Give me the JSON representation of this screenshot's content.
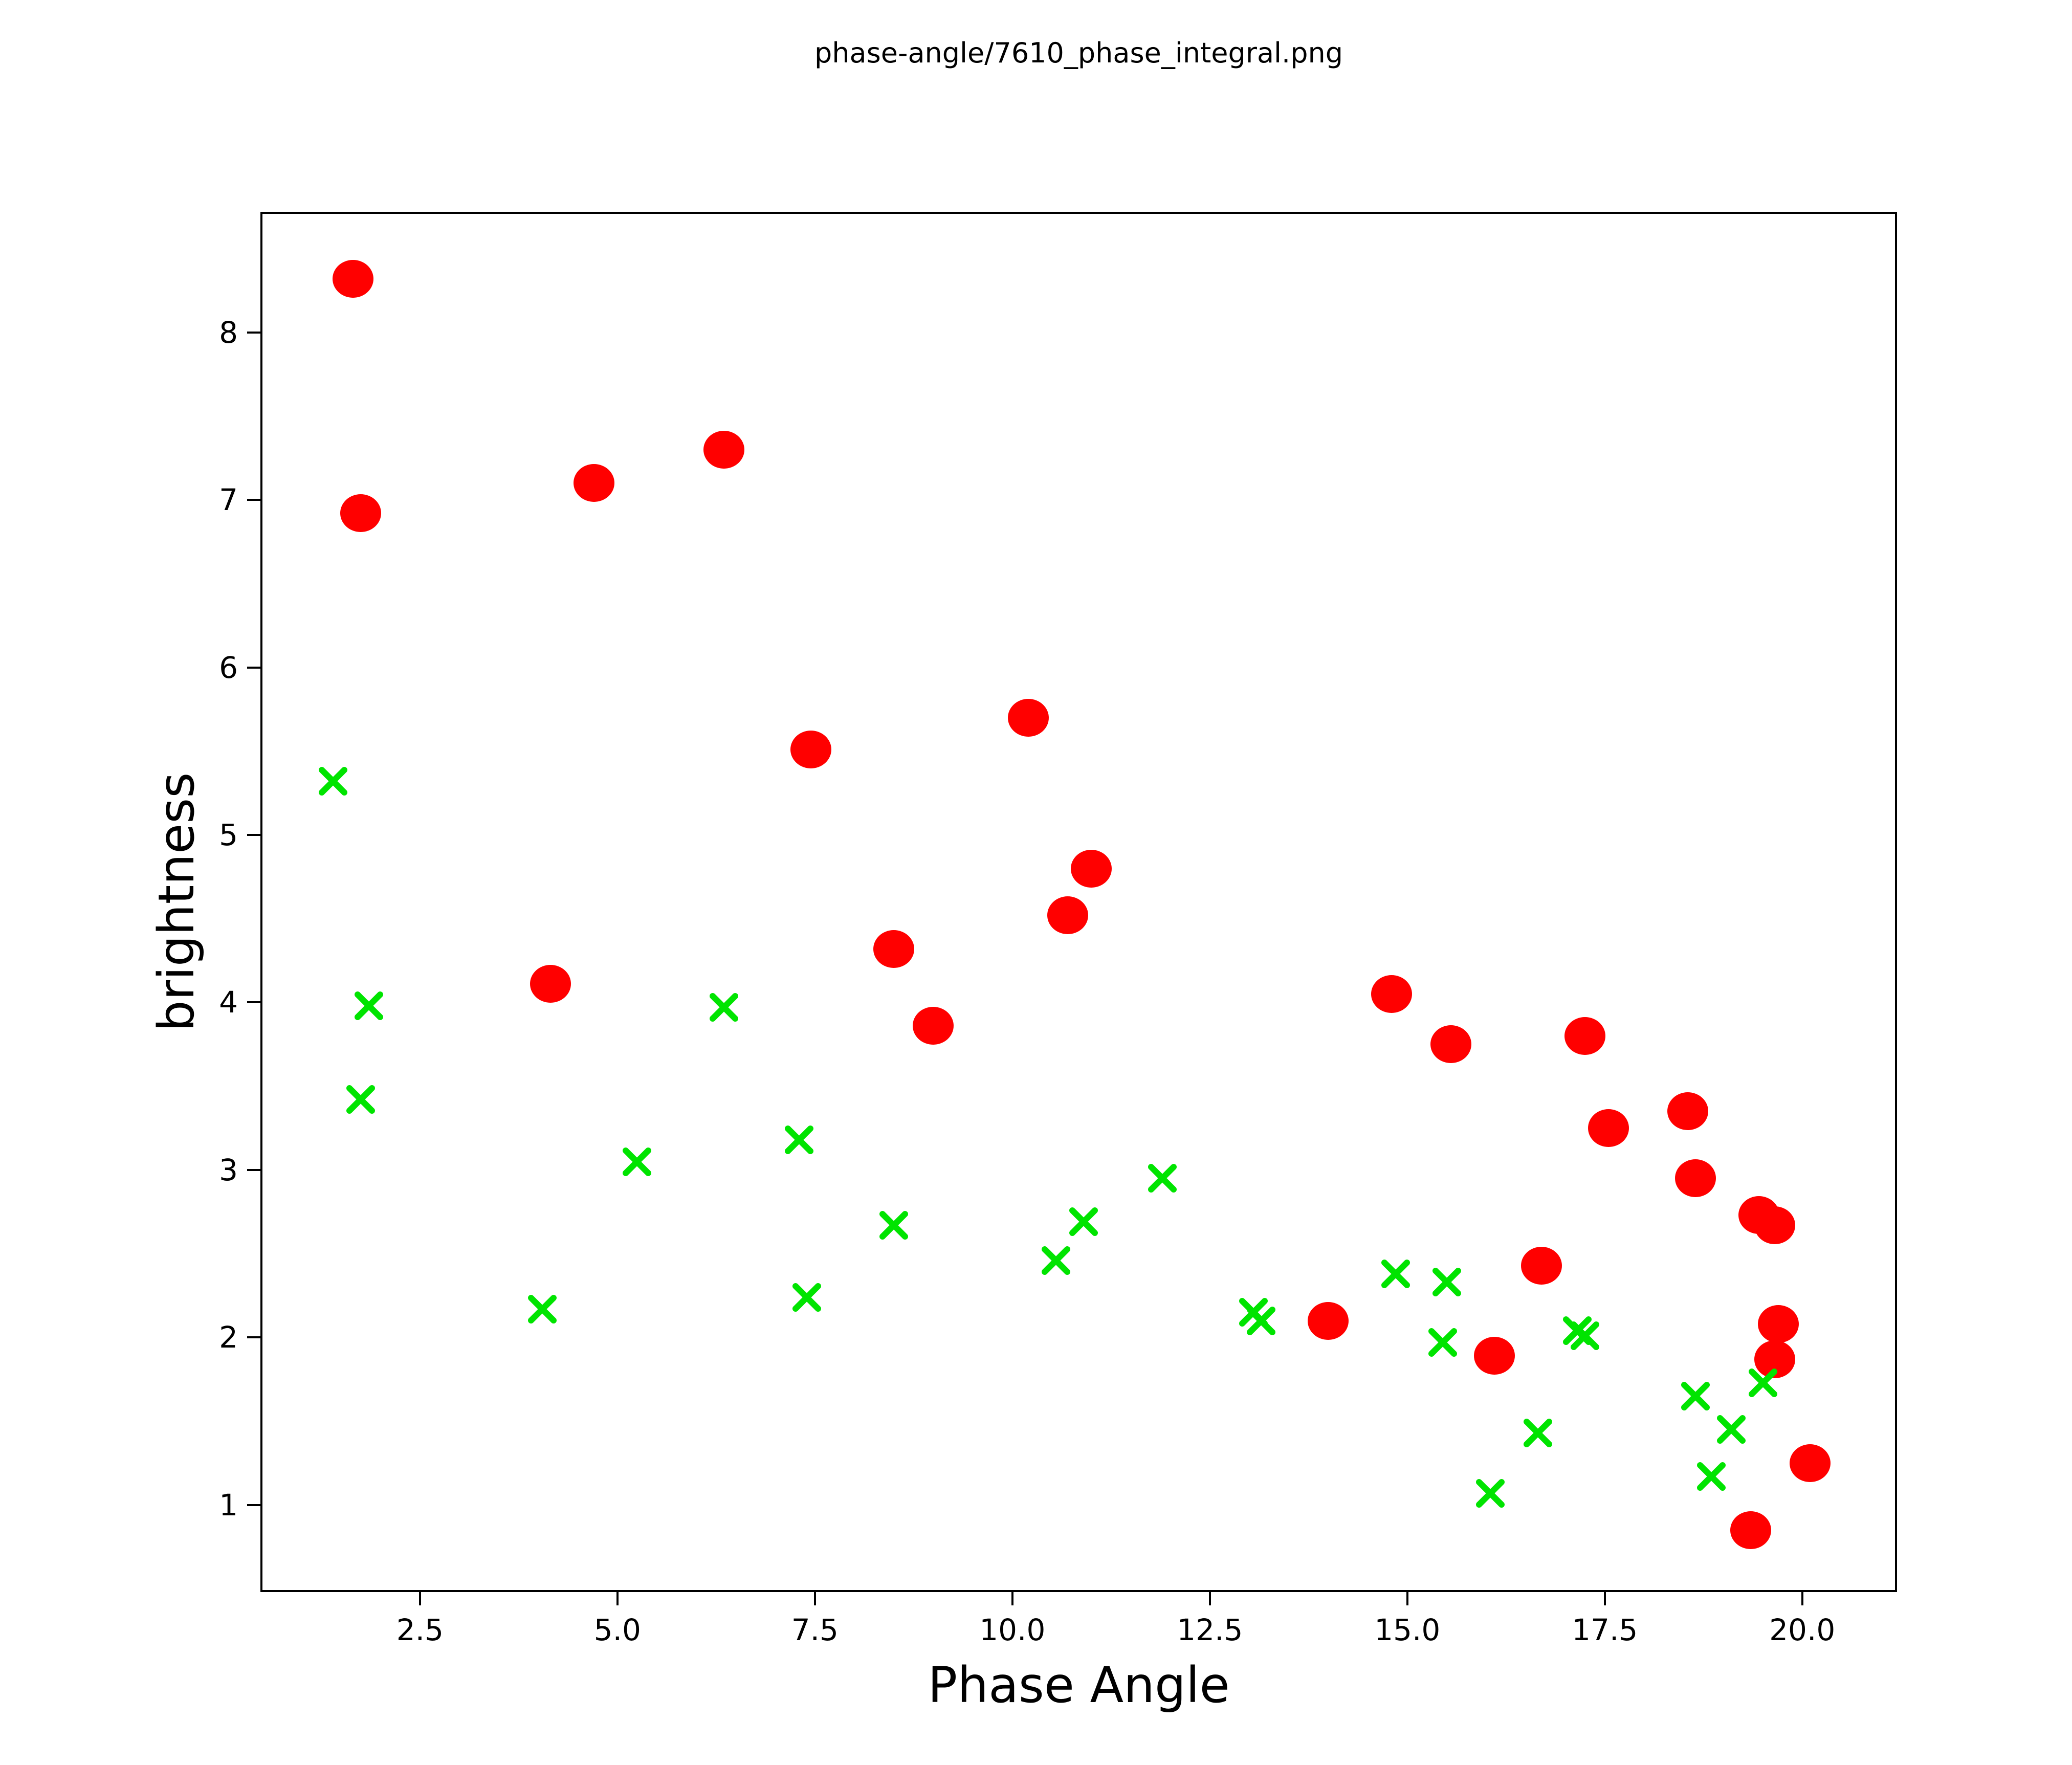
{
  "title": "phase-angle/7610_phase_integral.png",
  "chart_data": {
    "type": "scatter",
    "title": "phase-angle/7610_phase_integral.png",
    "xlabel": "Phase Angle",
    "ylabel": "brightness",
    "xlim": [
      0.48,
      21.2
    ],
    "ylim": [
      0.48,
      8.72
    ],
    "x_ticks": [
      "2.5",
      "5.0",
      "7.5",
      "10.0",
      "12.5",
      "15.0",
      "17.5",
      "20.0"
    ],
    "x_tick_values": [
      2.5,
      5.0,
      7.5,
      10.0,
      12.5,
      15.0,
      17.5,
      20.0
    ],
    "y_ticks": [
      "1",
      "2",
      "3",
      "4",
      "5",
      "6",
      "7",
      "8"
    ],
    "y_tick_values": [
      1,
      2,
      3,
      4,
      5,
      6,
      7,
      8
    ],
    "grid": false,
    "legend": false,
    "series": [
      {
        "name": "red-circles",
        "marker": "circle",
        "color": "#ff0000",
        "points": [
          [
            1.65,
            8.32
          ],
          [
            1.75,
            6.92
          ],
          [
            4.7,
            7.1
          ],
          [
            6.35,
            7.3
          ],
          [
            7.45,
            5.51
          ],
          [
            10.2,
            5.7
          ],
          [
            10.7,
            4.52
          ],
          [
            11.0,
            4.8
          ],
          [
            8.5,
            4.32
          ],
          [
            9.0,
            3.86
          ],
          [
            4.15,
            4.11
          ],
          [
            14.8,
            4.05
          ],
          [
            15.55,
            3.75
          ],
          [
            17.25,
            3.8
          ],
          [
            17.55,
            3.25
          ],
          [
            18.55,
            3.35
          ],
          [
            14.0,
            2.1
          ],
          [
            16.7,
            2.43
          ],
          [
            16.1,
            1.89
          ],
          [
            18.65,
            2.95
          ],
          [
            19.45,
            2.73
          ],
          [
            19.65,
            2.67
          ],
          [
            19.7,
            2.08
          ],
          [
            19.65,
            1.87
          ],
          [
            20.1,
            1.25
          ],
          [
            19.35,
            0.85
          ]
        ]
      },
      {
        "name": "green-crosses",
        "marker": "x",
        "color": "#00e400",
        "points": [
          [
            1.4,
            5.32
          ],
          [
            1.85,
            3.98
          ],
          [
            1.75,
            3.42
          ],
          [
            6.35,
            3.97
          ],
          [
            5.25,
            3.05
          ],
          [
            4.05,
            2.17
          ],
          [
            7.3,
            3.18
          ],
          [
            7.4,
            2.24
          ],
          [
            8.5,
            2.67
          ],
          [
            10.55,
            2.46
          ],
          [
            10.9,
            2.69
          ],
          [
            11.9,
            2.95
          ],
          [
            13.05,
            2.15
          ],
          [
            13.15,
            2.1
          ],
          [
            14.85,
            2.38
          ],
          [
            15.5,
            2.33
          ],
          [
            15.45,
            1.97
          ],
          [
            16.05,
            1.07
          ],
          [
            17.15,
            2.04
          ],
          [
            17.25,
            2.01
          ],
          [
            16.65,
            1.43
          ],
          [
            18.65,
            1.65
          ],
          [
            19.5,
            1.73
          ],
          [
            19.1,
            1.45
          ],
          [
            18.85,
            1.17
          ]
        ]
      }
    ]
  }
}
